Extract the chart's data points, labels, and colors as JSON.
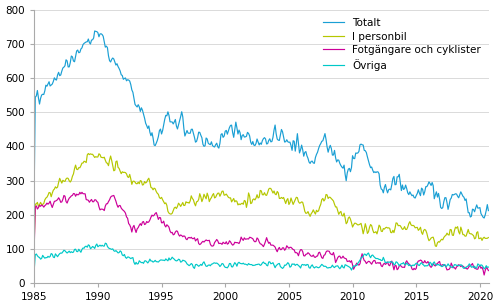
{
  "title": "",
  "xlabel": "",
  "ylabel": "",
  "xlim": [
    1985.0,
    2020.75
  ],
  "ylim": [
    0,
    800
  ],
  "yticks": [
    0,
    100,
    200,
    300,
    400,
    500,
    600,
    700,
    800
  ],
  "xticks": [
    1985,
    1990,
    1995,
    2000,
    2005,
    2010,
    2015,
    2020
  ],
  "colors": {
    "Totalt": "#1a9fd4",
    "I personbil": "#b5c700",
    "Fotgangare": "#cc0099",
    "Ovriga": "#00c8c8"
  },
  "legend_labels": [
    "Totalt",
    "I personbil",
    "Fotgängare och cyklister",
    "Övriga"
  ],
  "background_color": "#ffffff",
  "grid_color": "#cccccc",
  "line_width": 0.85,
  "figsize": [
    5.0,
    3.08
  ],
  "dpi": 100
}
